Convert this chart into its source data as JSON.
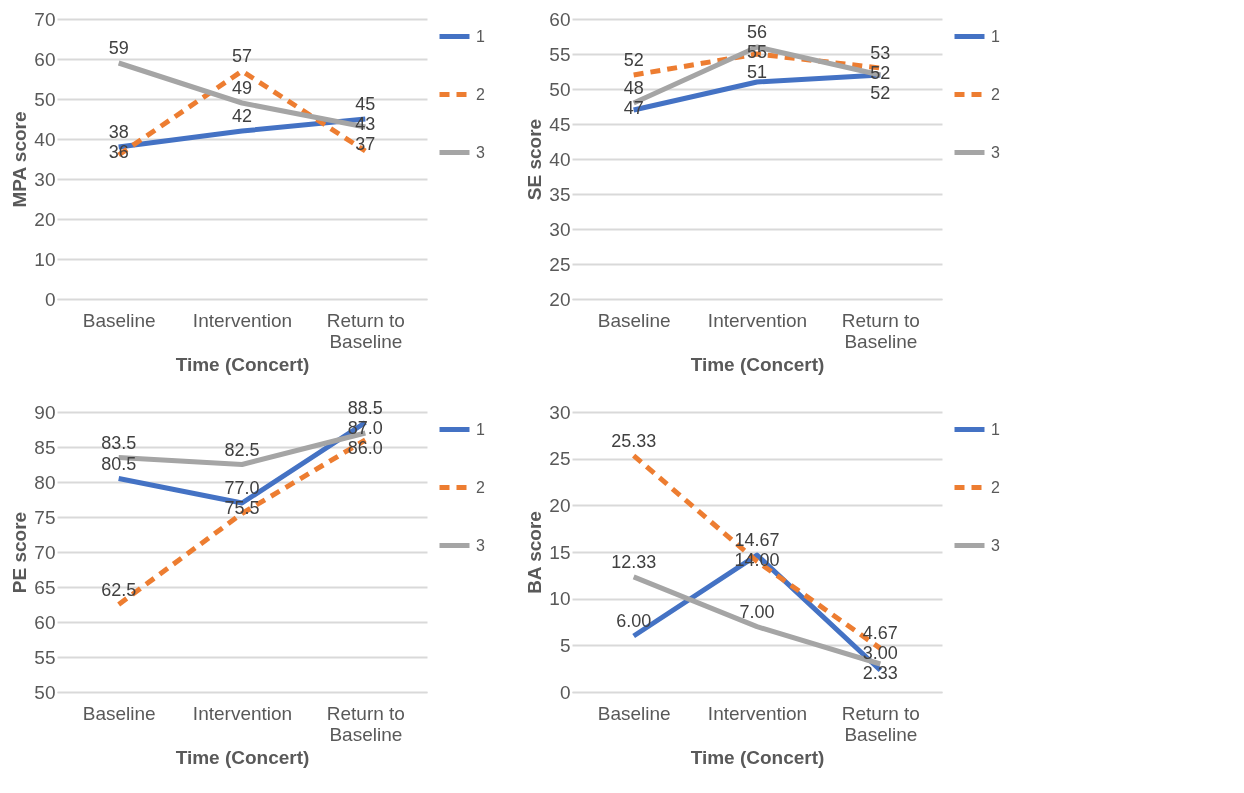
{
  "chart_data": [
    {
      "type": "line",
      "xlabel": "Time (Concert)",
      "ylabel": "MPA score",
      "categories": [
        "Baseline",
        "Intervention",
        "Return to Baseline"
      ],
      "ylim": [
        0,
        70
      ],
      "yticks": [
        0,
        10,
        20,
        30,
        40,
        50,
        60,
        70
      ],
      "grid": "y",
      "legend": "right",
      "marker": "none",
      "series": [
        {
          "name": "1",
          "color": "#4472c4",
          "line_style": "solid",
          "values": [
            38,
            42,
            45
          ],
          "value_labels": [
            "38",
            "42",
            "45"
          ]
        },
        {
          "name": "2",
          "color": "#ed7d31",
          "line_style": "dashed",
          "values": [
            36,
            57,
            37
          ],
          "value_labels": [
            "36",
            "57",
            "37"
          ]
        },
        {
          "name": "3",
          "color": "#a5a5a5",
          "line_style": "solid",
          "values": [
            59,
            49,
            43
          ],
          "value_labels": [
            "59",
            "49",
            "43"
          ]
        }
      ]
    },
    {
      "type": "line",
      "xlabel": "Time (Concert)",
      "ylabel": "SE score",
      "categories": [
        "Baseline",
        "Intervention",
        "Return to Baseline"
      ],
      "ylim": [
        20,
        60
      ],
      "yticks": [
        20,
        25,
        30,
        35,
        40,
        45,
        50,
        55,
        60
      ],
      "grid": "y",
      "legend": "right",
      "marker": "none",
      "series": [
        {
          "name": "1",
          "color": "#4472c4",
          "line_style": "solid",
          "values": [
            47,
            51,
            52
          ],
          "value_labels": [
            "47",
            "51",
            "52"
          ]
        },
        {
          "name": "2",
          "color": "#ed7d31",
          "line_style": "dashed",
          "values": [
            52,
            55,
            53
          ],
          "value_labels": [
            "52",
            "55",
            "53"
          ]
        },
        {
          "name": "3",
          "color": "#a5a5a5",
          "line_style": "solid",
          "values": [
            48,
            56,
            52
          ],
          "value_labels": [
            "48",
            "56",
            "52"
          ]
        }
      ]
    },
    {
      "type": "line",
      "xlabel": "Time (Concert)",
      "ylabel": "PE score",
      "categories": [
        "Baseline",
        "Intervention",
        "Return to Baseline"
      ],
      "ylim": [
        50,
        90
      ],
      "yticks": [
        50,
        55,
        60,
        65,
        70,
        75,
        80,
        85,
        90
      ],
      "grid": "y",
      "legend": "right",
      "marker": "none",
      "series": [
        {
          "name": "1",
          "color": "#4472c4",
          "line_style": "solid",
          "values": [
            80.5,
            77.0,
            88.5
          ],
          "value_labels": [
            "80.5",
            "77.0",
            "88.5"
          ]
        },
        {
          "name": "2",
          "color": "#ed7d31",
          "line_style": "dashed",
          "values": [
            62.5,
            75.5,
            86.0
          ],
          "value_labels": [
            "62.5",
            "75.5",
            "86.0"
          ]
        },
        {
          "name": "3",
          "color": "#a5a5a5",
          "line_style": "solid",
          "values": [
            83.5,
            82.5,
            87.0
          ],
          "value_labels": [
            "83.5",
            "82.5",
            "87.0"
          ]
        }
      ]
    },
    {
      "type": "line",
      "xlabel": "Time (Concert)",
      "ylabel": "BA score",
      "categories": [
        "Baseline",
        "Intervention",
        "Return to Baseline"
      ],
      "ylim": [
        0,
        30
      ],
      "yticks": [
        0,
        5,
        10,
        15,
        20,
        25,
        30
      ],
      "grid": "y",
      "legend": "right",
      "marker": "none",
      "series": [
        {
          "name": "1",
          "color": "#4472c4",
          "line_style": "solid",
          "values": [
            6.0,
            14.67,
            2.33
          ],
          "value_labels": [
            "6.00",
            "14.67",
            "2.33"
          ]
        },
        {
          "name": "2",
          "color": "#ed7d31",
          "line_style": "dashed",
          "values": [
            25.33,
            14.0,
            4.67
          ],
          "value_labels": [
            "25.33",
            "14.00",
            "4.67"
          ]
        },
        {
          "name": "3",
          "color": "#a5a5a5",
          "line_style": "solid",
          "values": [
            12.33,
            7.0,
            3.0
          ],
          "value_labels": [
            "12.33",
            "7.00",
            "3.00"
          ]
        }
      ]
    }
  ]
}
